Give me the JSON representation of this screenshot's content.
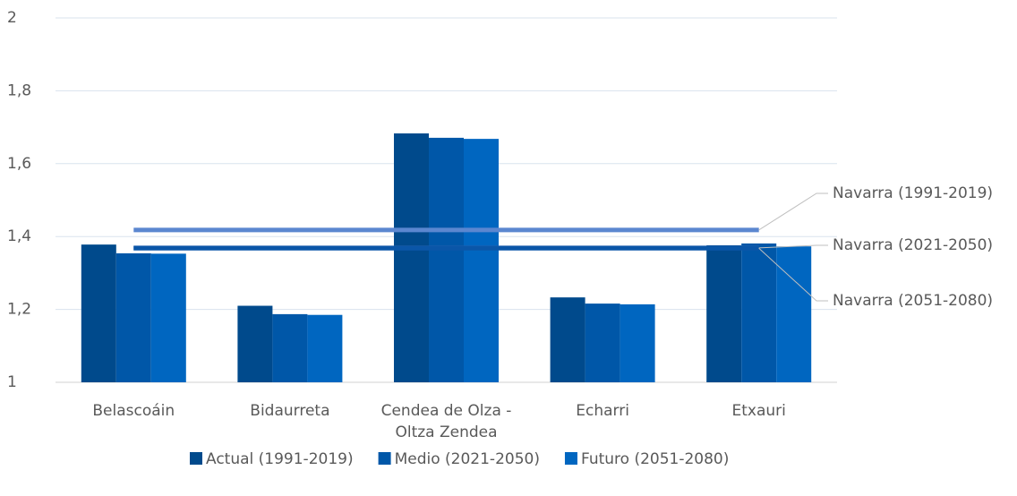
{
  "chart_data": {
    "type": "bar",
    "categories": [
      "Belascoáin",
      "Bidaurreta",
      "Cendea de Olza - Oltza Zendea",
      "Echarri",
      "Etxauri"
    ],
    "series": [
      {
        "name": "Actual (1991-2019)",
        "color": "#004a8c",
        "values": [
          1.378,
          1.21,
          1.683,
          1.233,
          1.376
        ]
      },
      {
        "name": "Medio (2021-2050)",
        "color": "#0057a8",
        "values": [
          1.354,
          1.187,
          1.671,
          1.216,
          1.381
        ]
      },
      {
        "name": "Futuro (2051-2080)",
        "color": "#0066c0",
        "values": [
          1.353,
          1.185,
          1.668,
          1.214,
          1.373
        ]
      }
    ],
    "reference_lines": [
      {
        "name": "Navarra (1991-2019)",
        "color": "#5b87d0",
        "value": 1.418
      },
      {
        "name": "Navarra (2021-2050)",
        "color": "#2a63b0",
        "value": 1.369
      },
      {
        "name": "Navarra (2051-2080)",
        "color": "#0a56a8",
        "value": 1.368
      }
    ],
    "ylim": [
      1,
      2
    ],
    "yticks": [
      1,
      {
        "value": 1.2,
        "label": "1,2"
      },
      {
        "value": 1.4,
        "label": "1,4"
      },
      {
        "value": 1.6,
        "label": "1,6"
      },
      {
        "value": 1.8,
        "label": "1,8"
      },
      2
    ],
    "grid": true,
    "legend": "bottom"
  }
}
